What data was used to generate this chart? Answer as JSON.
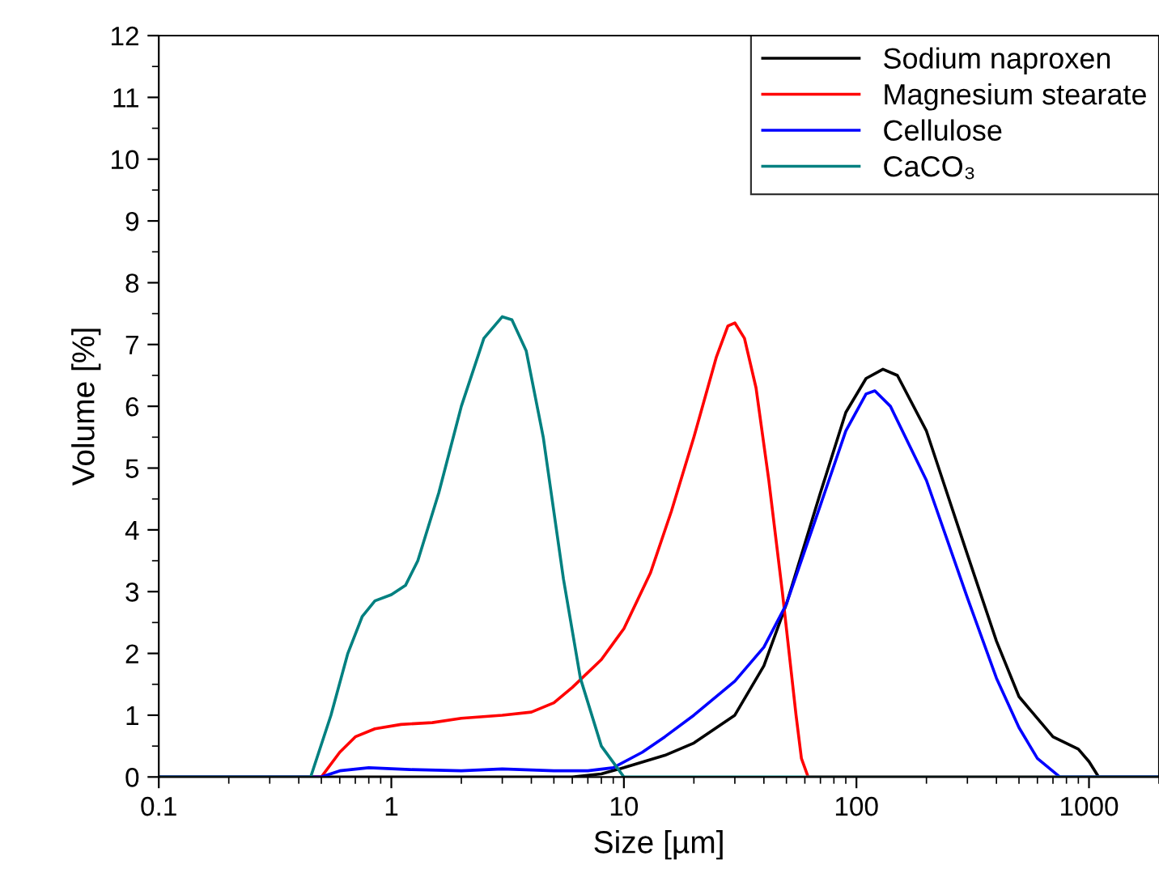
{
  "chart_data": {
    "type": "line",
    "xlabel": "Size [µm]",
    "ylabel": "Volume [%]",
    "log": "x",
    "xlim": [
      0.1,
      2000
    ],
    "xticks": [
      0.1,
      1,
      10,
      100,
      1000
    ],
    "ylim": [
      0,
      12
    ],
    "yticks": [
      0,
      1,
      2,
      3,
      4,
      5,
      6,
      7,
      8,
      9,
      10,
      11,
      12
    ],
    "grid": false,
    "legend": "top right",
    "marker": "none",
    "line_style": "solid",
    "series": [
      {
        "name": "Sodium naproxen",
        "color": "#000000",
        "x": [
          0.1,
          6,
          8,
          10,
          15,
          20,
          30,
          40,
          50,
          70,
          90,
          110,
          130,
          150,
          200,
          300,
          400,
          500,
          700,
          900,
          1000,
          1100,
          2000
        ],
        "values": [
          0,
          0,
          0.05,
          0.15,
          0.35,
          0.55,
          1.0,
          1.8,
          2.8,
          4.6,
          5.9,
          6.45,
          6.6,
          6.5,
          5.6,
          3.6,
          2.2,
          1.3,
          0.65,
          0.45,
          0.25,
          0,
          0
        ]
      },
      {
        "name": "Magnesium stearate",
        "color": "#ff0000",
        "x": [
          0.1,
          0.5,
          0.6,
          0.7,
          0.85,
          1.1,
          1.5,
          2,
          3,
          4,
          5,
          6,
          8,
          10,
          13,
          16,
          20,
          25,
          28,
          30,
          33,
          37,
          42,
          48,
          55,
          58,
          62,
          2000
        ],
        "values": [
          0,
          0,
          0.4,
          0.65,
          0.78,
          0.85,
          0.88,
          0.95,
          1.0,
          1.05,
          1.2,
          1.45,
          1.9,
          2.4,
          3.3,
          4.3,
          5.5,
          6.8,
          7.3,
          7.35,
          7.1,
          6.3,
          4.8,
          3.0,
          1.0,
          0.3,
          0,
          0
        ]
      },
      {
        "name": "Cellulose",
        "color": "#0000ff",
        "x": [
          0.1,
          0.5,
          0.6,
          0.8,
          1.2,
          2,
          3,
          5,
          7,
          9,
          12,
          15,
          20,
          30,
          40,
          50,
          70,
          90,
          110,
          120,
          140,
          200,
          300,
          400,
          500,
          600,
          750,
          2000
        ],
        "values": [
          0,
          0,
          0.1,
          0.15,
          0.12,
          0.1,
          0.13,
          0.1,
          0.1,
          0.15,
          0.4,
          0.65,
          1.0,
          1.55,
          2.1,
          2.8,
          4.4,
          5.6,
          6.2,
          6.25,
          6.0,
          4.8,
          2.9,
          1.6,
          0.8,
          0.3,
          0,
          0
        ]
      },
      {
        "name": "CaCO₃",
        "color": "#008080",
        "x": [
          0.1,
          0.45,
          0.55,
          0.65,
          0.75,
          0.85,
          1.0,
          1.15,
          1.3,
          1.6,
          2.0,
          2.5,
          3.0,
          3.3,
          3.8,
          4.5,
          5.5,
          6.5,
          8,
          10,
          2000
        ],
        "values": [
          0,
          0,
          1.0,
          2.0,
          2.6,
          2.85,
          2.95,
          3.1,
          3.5,
          4.6,
          6.0,
          7.1,
          7.45,
          7.4,
          6.9,
          5.5,
          3.2,
          1.6,
          0.5,
          0,
          0
        ]
      }
    ]
  }
}
